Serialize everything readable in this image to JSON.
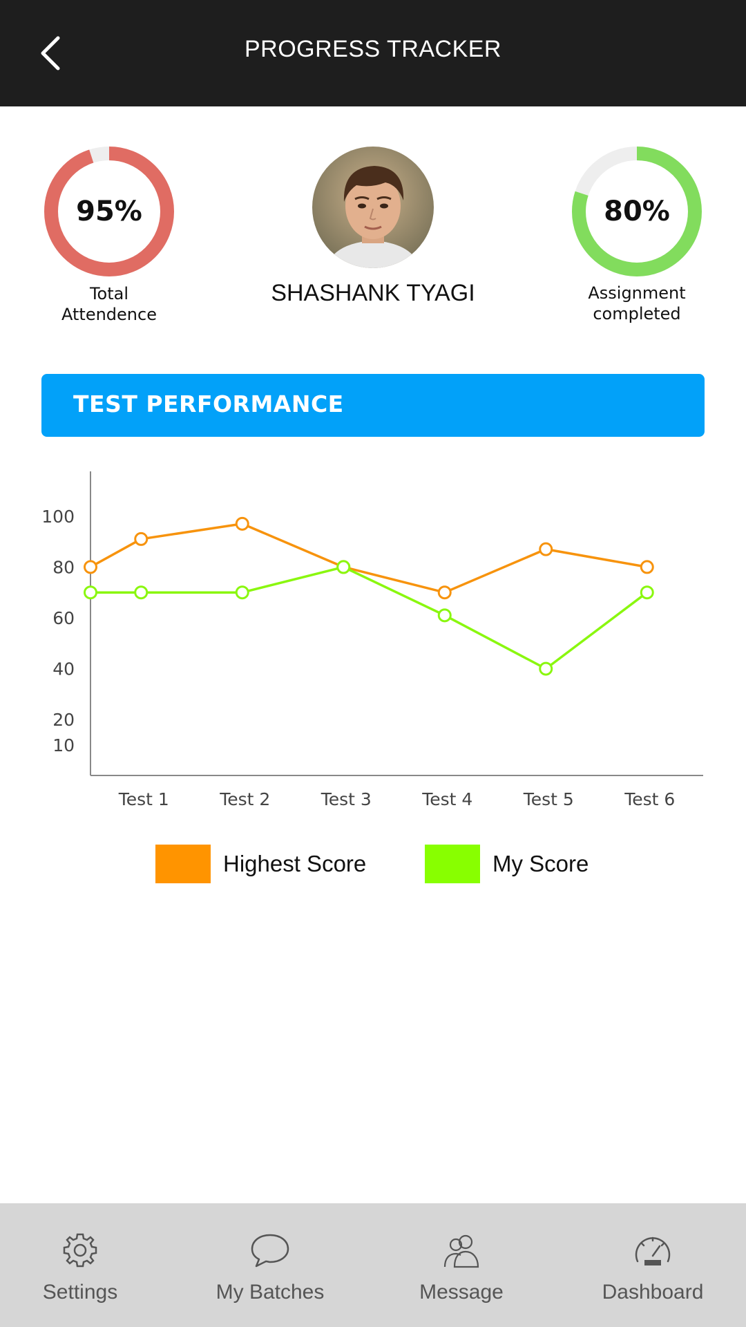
{
  "header": {
    "title": "PROGRESS TRACKER",
    "back_icon": "chevron-left-icon"
  },
  "attendance": {
    "value": "95%",
    "percent": 95,
    "caption_line1": "Total",
    "caption_line2": "Attendence",
    "color": "#e06c63",
    "track_color": "#eeeeee"
  },
  "assignment": {
    "value": "80%",
    "percent": 80,
    "caption_line1": "Assignment",
    "caption_line2": "completed",
    "color": "#82dc5d",
    "track_color": "#eeeeee"
  },
  "student": {
    "name": "SHASHANK TYAGI"
  },
  "section": {
    "title": "TEST PERFORMANCE",
    "color": "#02a1f9"
  },
  "chart_data": {
    "type": "line",
    "categories": [
      "Test 1",
      "Test 2",
      "Test 3",
      "Test 4",
      "Test 5",
      "Test 6"
    ],
    "x_positions": [
      0,
      1,
      2,
      3,
      4,
      5,
      6
    ],
    "yticks": [
      10,
      20,
      40,
      60,
      80,
      100
    ],
    "ylim": [
      0,
      100
    ],
    "grid": false,
    "series": [
      {
        "name": "Highest Score",
        "color": "#f7930d",
        "x": [
          0,
          0.5,
          1.5,
          2.5,
          3.5,
          4.5,
          5.5
        ],
        "values": [
          80,
          91,
          97,
          80,
          70,
          87,
          80
        ]
      },
      {
        "name": "My Score",
        "color": "#8af70f",
        "x": [
          0,
          0.5,
          1.5,
          2.5,
          3.5,
          4.5,
          5.5
        ],
        "values": [
          70,
          70,
          70,
          80,
          61,
          40,
          70
        ]
      }
    ],
    "legend": "bottom"
  },
  "legend": [
    {
      "label": "Highest Score",
      "color": "#ff9400"
    },
    {
      "label": "My Score",
      "color": "#88ff00"
    }
  ],
  "nav": [
    {
      "label": "Settings",
      "icon": "gear-icon"
    },
    {
      "label": "My Batches",
      "icon": "chat-bubble-icon"
    },
    {
      "label": "Message",
      "icon": "users-icon"
    },
    {
      "label": "Dashboard",
      "icon": "speedometer-icon"
    }
  ]
}
